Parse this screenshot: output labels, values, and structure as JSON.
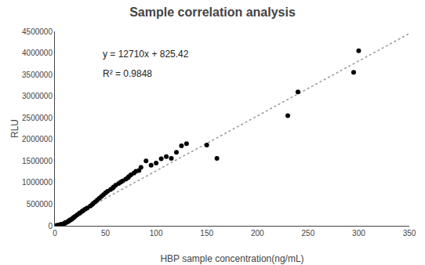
{
  "chart_data": {
    "type": "scatter",
    "title": "Sample correlation analysis",
    "xlabel": "HBP sample concentration(ng/mL)",
    "ylabel": "RLU",
    "annotations": [
      "y = 12710x + 825.42",
      "R² = 0.9848"
    ],
    "xlim": [
      0,
      350
    ],
    "ylim": [
      0,
      4500000
    ],
    "xticks": [
      0,
      50,
      100,
      150,
      200,
      250,
      300,
      350
    ],
    "yticks": [
      0,
      500000,
      1000000,
      1500000,
      2000000,
      2500000,
      3000000,
      3500000,
      4000000,
      4500000
    ],
    "grid": false,
    "series": [
      {
        "type": "line",
        "color": "#999999",
        "line_style": "dotted",
        "x": [
          0,
          350
        ],
        "values": [
          825.42,
          4449325.42
        ]
      },
      {
        "type": "scatter",
        "color": "#000000",
        "marker": "circle",
        "x": [
          1,
          2,
          2,
          3,
          3,
          4,
          4,
          5,
          5,
          6,
          6,
          7,
          8,
          9,
          10,
          11,
          12,
          13,
          14,
          15,
          16,
          17,
          18,
          19,
          20,
          22,
          24,
          25,
          27,
          28,
          30,
          32,
          35,
          37,
          38,
          40,
          42,
          44,
          46,
          48,
          50,
          52,
          55,
          57,
          58,
          60,
          63,
          65,
          67,
          70,
          72,
          73,
          75,
          78,
          80,
          83,
          85,
          90,
          95,
          100,
          105,
          110,
          115,
          120,
          125,
          130,
          150,
          160,
          230,
          240,
          295,
          300
        ],
        "values": [
          3000,
          5000,
          6000,
          8000,
          10000,
          12000,
          15000,
          18000,
          22000,
          25000,
          30000,
          35000,
          42000,
          50000,
          60000,
          75000,
          88000,
          100000,
          115000,
          130000,
          145000,
          160000,
          180000,
          200000,
          220000,
          255000,
          285000,
          305000,
          335000,
          355000,
          385000,
          415000,
          460000,
          495000,
          520000,
          560000,
          600000,
          640000,
          680000,
          720000,
          760000,
          800000,
          840000,
          870000,
          900000,
          940000,
          980000,
          1010000,
          1040000,
          1080000,
          1110000,
          1140000,
          1180000,
          1220000,
          1260000,
          1280000,
          1350000,
          1500000,
          1400000,
          1450000,
          1550000,
          1600000,
          1560000,
          1700000,
          1850000,
          1900000,
          1870000,
          1560000,
          2550000,
          3100000,
          3550000,
          4050000
        ]
      }
    ]
  }
}
